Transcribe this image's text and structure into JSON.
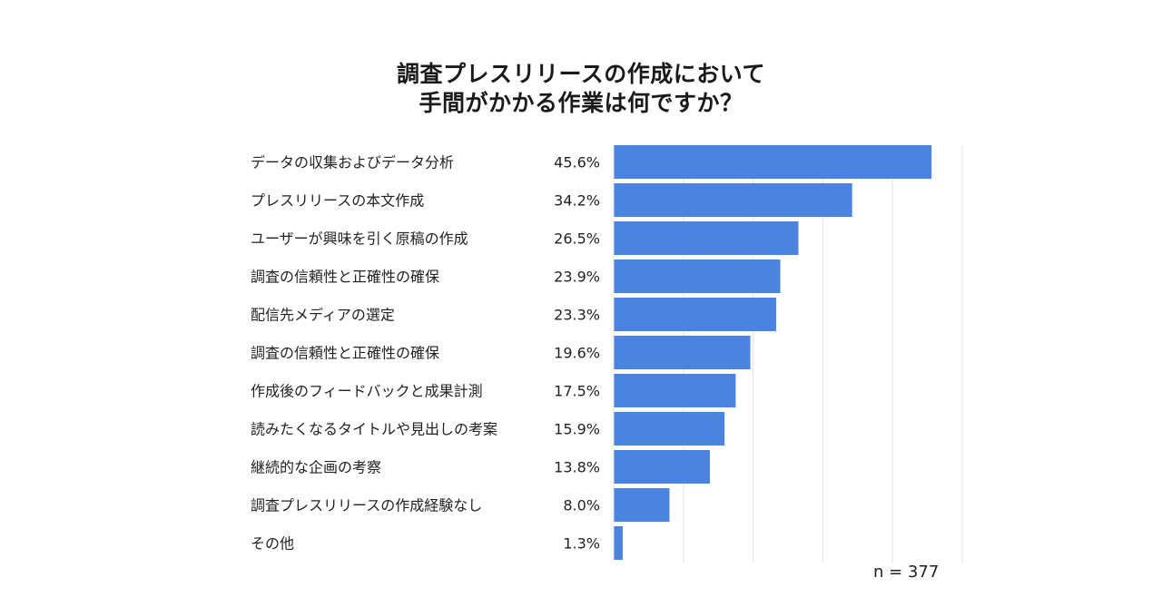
{
  "title_line1": "調査プレスリリースの作成において",
  "title_line2": "手間がかかる作業は何ですか？",
  "sample_size": "n = 377",
  "colors": {
    "bar": "#4a84e0",
    "grid": "#e3e3e3",
    "text": "#222222"
  },
  "chart_data": {
    "type": "bar",
    "orientation": "horizontal",
    "title": "調査プレスリリースの作成において 手間がかかる作業は何ですか？",
    "categories": [
      "データの収集およびデータ分析",
      "プレスリリースの本文作成",
      "ユーザーが興味を引く原稿の作成",
      "調査の信頼性と正確性の確保",
      "配信先メディアの選定",
      "調査の信頼性と正確性の確保",
      "作成後のフィードバックと成果計測",
      "読みたくなるタイトルや見出しの考案",
      "継続的な企画の考察",
      "調査プレスリリースの作成経験なし",
      "その他"
    ],
    "values": [
      45.6,
      34.2,
      26.5,
      23.9,
      23.3,
      19.6,
      17.5,
      15.9,
      13.8,
      8.0,
      1.3
    ],
    "value_labels": [
      "45.6%",
      "34.2%",
      "26.5%",
      "23.9%",
      "23.3%",
      "19.6%",
      "17.5%",
      "15.9%",
      "13.8%",
      "8.0%",
      "1.3%"
    ],
    "unit": "%",
    "xlim": [
      0,
      50
    ],
    "grid": true,
    "xlabel": "",
    "ylabel": ""
  }
}
